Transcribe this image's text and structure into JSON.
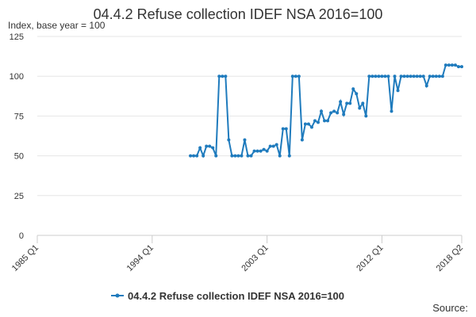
{
  "chart_data": {
    "type": "line",
    "title": "04.4.2 Refuse collection IDEF NSA 2016=100",
    "subtitle": "Index, base year = 100",
    "source": "Source:",
    "categories": [
      "1985 Q1",
      null,
      null,
      null,
      null,
      null,
      null,
      null,
      null,
      null,
      null,
      null,
      null,
      null,
      null,
      null,
      null,
      null,
      null,
      null,
      null,
      null,
      null,
      null,
      null,
      null,
      null,
      null,
      null,
      null,
      null,
      null,
      null,
      null,
      null,
      null,
      "1994 Q1",
      null,
      null,
      null,
      null,
      null,
      null,
      null,
      null,
      null,
      null,
      null,
      null,
      null,
      null,
      null,
      null,
      null,
      null,
      null,
      null,
      null,
      null,
      null,
      null,
      null,
      null,
      null,
      null,
      null,
      null,
      null,
      null,
      null,
      null,
      null,
      "2003 Q1",
      null,
      null,
      null,
      null,
      null,
      null,
      null,
      null,
      null,
      null,
      null,
      null,
      null,
      null,
      null,
      null,
      null,
      null,
      null,
      null,
      null,
      null,
      null,
      null,
      null,
      null,
      null,
      null,
      null,
      null,
      null,
      null,
      null,
      null,
      null,
      "2012 Q1",
      null,
      null,
      null,
      null,
      null,
      null,
      null,
      null,
      null,
      null,
      null,
      null,
      null,
      null,
      null,
      null,
      null,
      null,
      null,
      null,
      null,
      null,
      null,
      null,
      "2018 Q2"
    ],
    "series": [
      {
        "name": "04.4.2 Refuse collection IDEF NSA 2016=100",
        "color": "#1f7bbd",
        "values": [
          null,
          null,
          null,
          null,
          null,
          null,
          null,
          null,
          null,
          null,
          null,
          null,
          null,
          null,
          null,
          null,
          null,
          null,
          null,
          null,
          null,
          null,
          null,
          null,
          null,
          null,
          null,
          null,
          null,
          null,
          null,
          null,
          null,
          null,
          null,
          null,
          null,
          null,
          null,
          null,
          null,
          null,
          null,
          null,
          null,
          null,
          null,
          null,
          50,
          50,
          50,
          55,
          50,
          56,
          56,
          55,
          50,
          100,
          100,
          100,
          60,
          50,
          50,
          50,
          50,
          60,
          50,
          50,
          53,
          53,
          53,
          54,
          53,
          56,
          56,
          57,
          50,
          67,
          67,
          50,
          100,
          100,
          100,
          60,
          70,
          70,
          68,
          72,
          71,
          78,
          72,
          72,
          77,
          78,
          77,
          84,
          76,
          83,
          83,
          92,
          89,
          80,
          83,
          75,
          100,
          100,
          100,
          100,
          100,
          100,
          100,
          78,
          100,
          91,
          100,
          100,
          100,
          100,
          100,
          100,
          100,
          100,
          94,
          100,
          100,
          100,
          100,
          100,
          107,
          107,
          107,
          107,
          106,
          106
        ]
      }
    ],
    "ylim": [
      0,
      125
    ],
    "yticks": [
      0,
      25,
      50,
      75,
      100,
      125
    ],
    "grid": true,
    "legend": "bottom"
  }
}
